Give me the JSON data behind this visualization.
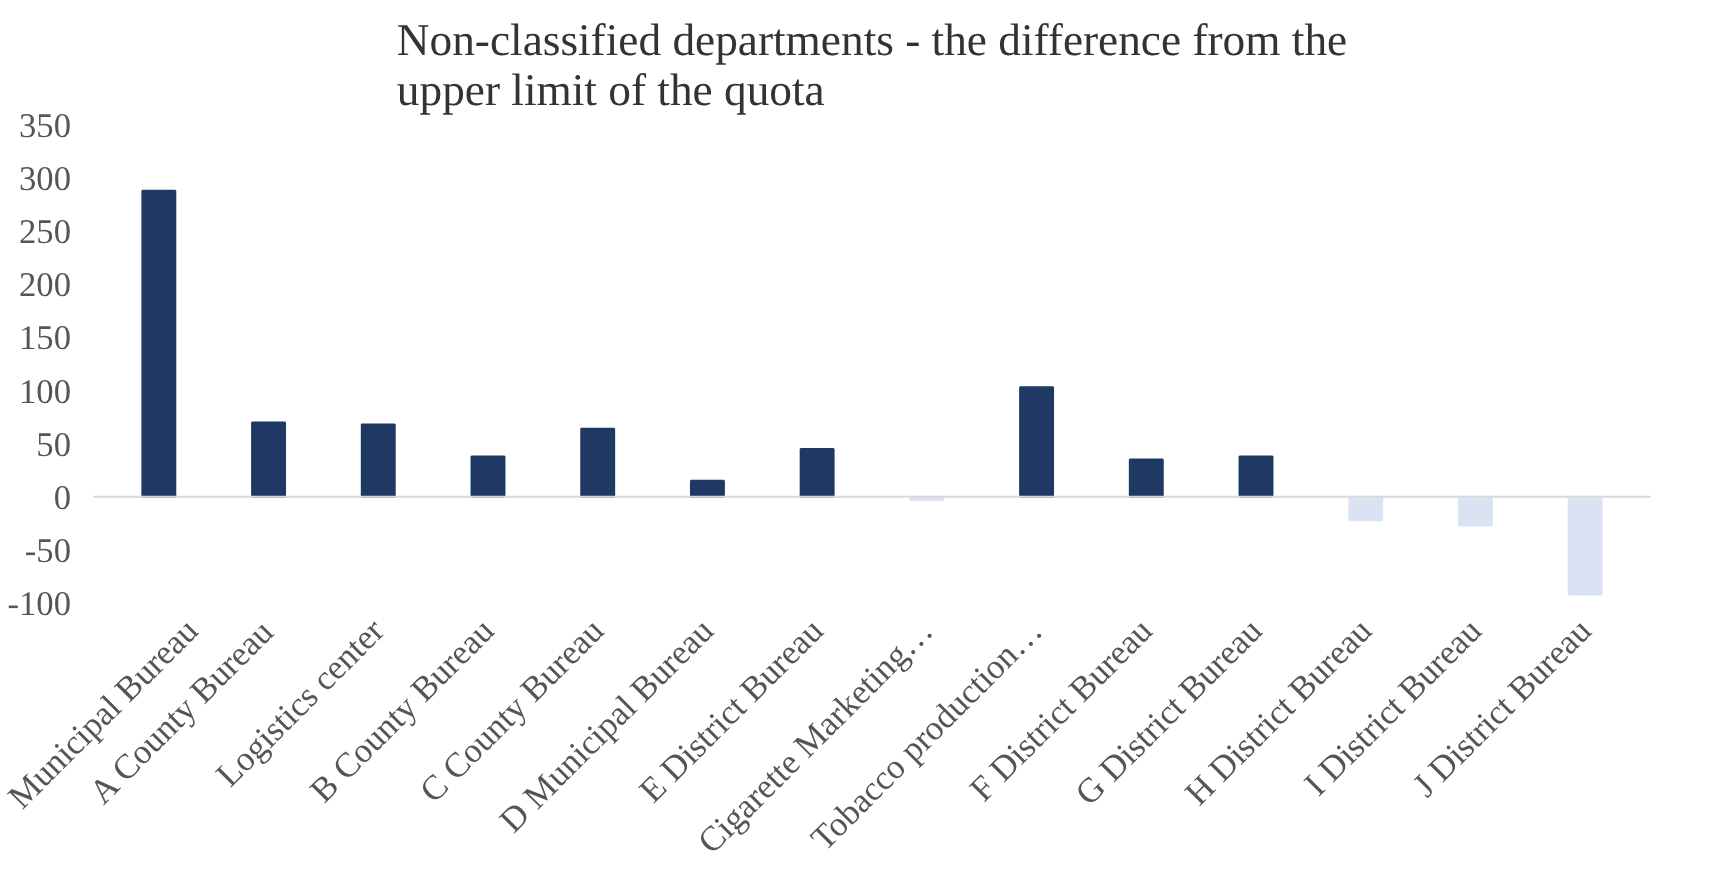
{
  "chart_data": {
    "type": "bar",
    "title": "Non-classified departments - the difference from the\nupper limit of the quota",
    "categories": [
      "Municipal Bureau",
      "A County Bureau",
      "Logistics center",
      "B County Bureau",
      "C County Bureau",
      "D Municipal Bureau",
      "E District Bureau",
      "Cigarette Marketing…",
      "Tobacco production…",
      "F District Bureau",
      "G District Bureau",
      "H District Bureau",
      "I District Bureau",
      "J District Bureau"
    ],
    "values": [
      288,
      70,
      68,
      38,
      64,
      15,
      45,
      -3,
      103,
      35,
      38,
      -22,
      -27,
      -92
    ],
    "colors": [
      "#1f3864",
      "#1f3864",
      "#1f3864",
      "#1f3864",
      "#1f3864",
      "#1f3864",
      "#1f3864",
      "#dae3f3",
      "#1f3864",
      "#1f3864",
      "#1f3864",
      "#dae3f3",
      "#dae3f3",
      "#dae3f3"
    ],
    "ylim": [
      -100,
      350
    ],
    "yticks": [
      -100,
      -50,
      0,
      50,
      100,
      150,
      200,
      250,
      300,
      350
    ]
  }
}
